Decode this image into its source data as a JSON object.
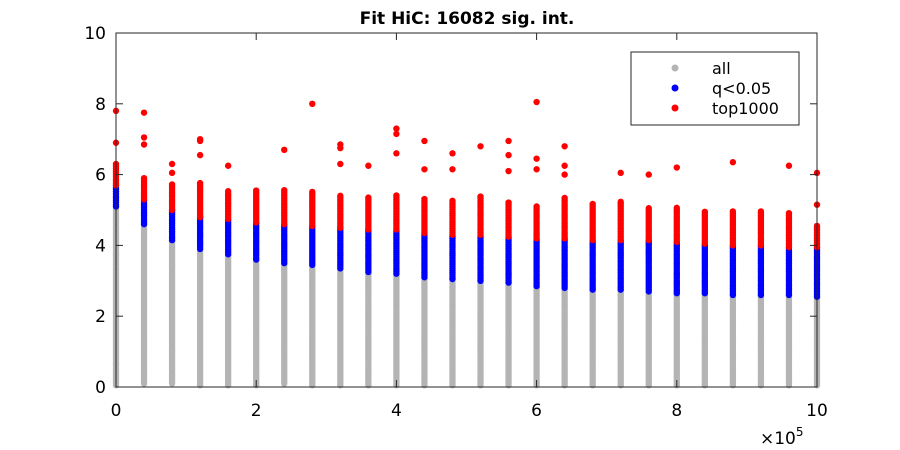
{
  "chart_data": {
    "type": "scatter",
    "title": "Fit HiC: 16082 sig. int.",
    "xlabel": "",
    "ylabel": "",
    "x_exponent_label": "×10",
    "x_exponent": "5",
    "xlim": [
      0,
      10
    ],
    "ylim": [
      0,
      10
    ],
    "x_ticks": [
      "0",
      "2",
      "4",
      "6",
      "8",
      "10"
    ],
    "y_ticks": [
      "0",
      "2",
      "4",
      "6",
      "8",
      "10"
    ],
    "grid": false,
    "legend_position": "top-right",
    "x_columns": [
      0,
      0.4,
      0.8,
      1.2,
      1.6,
      2.0,
      2.4,
      2.8,
      3.2,
      3.6,
      4.0,
      4.4,
      4.8,
      5.2,
      5.6,
      6.0,
      6.4,
      6.8,
      7.2,
      7.6,
      8.0,
      8.4,
      8.8,
      9.2,
      9.6,
      10.0
    ],
    "series": [
      {
        "name": "all",
        "color": "#b4b4b4",
        "y_min": [
          0.05,
          0.1,
          0.1,
          0.05,
          0.05,
          0.05,
          0.1,
          0.05,
          0.05,
          0.05,
          0.05,
          0.05,
          0.05,
          0.05,
          0.05,
          0.05,
          0.05,
          0.05,
          0.05,
          0.05,
          0.05,
          0.05,
          0.05,
          0.05,
          0.05,
          0.05
        ],
        "y_max": [
          5.1,
          4.6,
          4.15,
          3.9,
          3.75,
          3.6,
          3.5,
          3.45,
          3.35,
          3.25,
          3.2,
          3.1,
          3.05,
          3.0,
          2.95,
          2.85,
          2.8,
          2.75,
          2.75,
          2.7,
          2.65,
          2.65,
          2.6,
          2.6,
          2.6,
          2.55
        ]
      },
      {
        "name": "q<0.05",
        "color": "#0000ff",
        "y_min": [
          5.1,
          4.6,
          4.15,
          3.9,
          3.75,
          3.6,
          3.5,
          3.45,
          3.35,
          3.25,
          3.2,
          3.1,
          3.05,
          3.0,
          2.95,
          2.85,
          2.8,
          2.75,
          2.75,
          2.7,
          2.65,
          2.65,
          2.6,
          2.6,
          2.6,
          2.55
        ],
        "y_max": [
          5.7,
          5.3,
          5.0,
          4.8,
          4.75,
          4.65,
          4.6,
          4.55,
          4.5,
          4.45,
          4.45,
          4.35,
          4.3,
          4.3,
          4.25,
          4.2,
          4.2,
          4.15,
          4.15,
          4.15,
          4.1,
          4.05,
          4.0,
          4.0,
          3.95,
          3.95
        ]
      },
      {
        "name": "top1000",
        "color": "#ff0000",
        "y_min": [
          5.7,
          5.3,
          5.0,
          4.8,
          4.75,
          4.65,
          4.6,
          4.55,
          4.5,
          4.45,
          4.45,
          4.35,
          4.3,
          4.3,
          4.25,
          4.2,
          4.2,
          4.15,
          4.15,
          4.15,
          4.1,
          4.05,
          4.0,
          4.0,
          3.95,
          3.95
        ],
        "y_max": [
          6.35,
          5.95,
          5.75,
          5.8,
          5.55,
          5.55,
          5.6,
          5.55,
          5.45,
          5.4,
          5.45,
          5.35,
          5.3,
          5.4,
          5.25,
          5.1,
          5.35,
          5.2,
          5.25,
          5.05,
          5.1,
          5.0,
          5.0,
          5.0,
          4.95,
          4.6
        ],
        "outliers": [
          [
            0,
            7.8
          ],
          [
            0,
            6.9
          ],
          [
            0.4,
            7.75
          ],
          [
            0.4,
            7.05
          ],
          [
            0.4,
            6.85
          ],
          [
            0.8,
            6.3
          ],
          [
            0.8,
            6.05
          ],
          [
            1.2,
            7.0
          ],
          [
            1.2,
            6.95
          ],
          [
            1.2,
            6.55
          ],
          [
            1.6,
            6.25
          ],
          [
            2.4,
            6.7
          ],
          [
            2.8,
            8.0
          ],
          [
            3.2,
            6.85
          ],
          [
            3.2,
            6.75
          ],
          [
            3.2,
            6.3
          ],
          [
            3.6,
            6.25
          ],
          [
            4.0,
            7.3
          ],
          [
            4.0,
            7.15
          ],
          [
            4.0,
            6.6
          ],
          [
            4.4,
            6.95
          ],
          [
            4.4,
            6.15
          ],
          [
            4.8,
            6.6
          ],
          [
            4.8,
            6.15
          ],
          [
            5.2,
            6.8
          ],
          [
            5.6,
            6.95
          ],
          [
            5.6,
            6.55
          ],
          [
            5.6,
            6.1
          ],
          [
            6.0,
            8.05
          ],
          [
            6.0,
            6.45
          ],
          [
            6.0,
            6.15
          ],
          [
            6.4,
            6.8
          ],
          [
            6.4,
            6.25
          ],
          [
            6.4,
            6.0
          ],
          [
            7.2,
            6.05
          ],
          [
            7.6,
            6.0
          ],
          [
            8.0,
            6.2
          ],
          [
            8.8,
            6.35
          ],
          [
            9.6,
            6.25
          ],
          [
            10.0,
            6.05
          ],
          [
            10.0,
            5.15
          ]
        ]
      }
    ]
  }
}
